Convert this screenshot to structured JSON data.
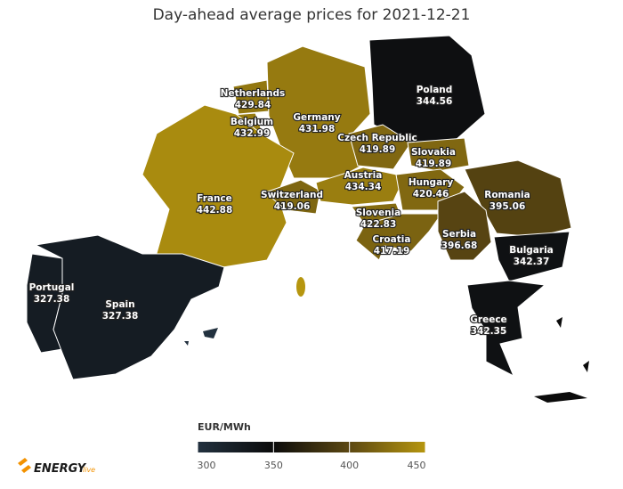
{
  "title": "Day-ahead average prices for 2021-12-21",
  "regions": [
    {
      "name": "Poland",
      "value": 344.56
    },
    {
      "name": "Netherlands",
      "value": 429.84
    },
    {
      "name": "Belgium",
      "value": 432.99
    },
    {
      "name": "Germany",
      "value": 431.98
    },
    {
      "name": "Czech Republic",
      "value": 419.89
    },
    {
      "name": "Slovakia",
      "value": 419.89
    },
    {
      "name": "France",
      "value": 442.88
    },
    {
      "name": "Switzerland",
      "value": 419.06
    },
    {
      "name": "Austria",
      "value": 434.34
    },
    {
      "name": "Hungary",
      "value": 420.46
    },
    {
      "name": "Romania",
      "value": 395.06
    },
    {
      "name": "Slovenia",
      "value": 422.83
    },
    {
      "name": "Croatia",
      "value": 417.19
    },
    {
      "name": "Serbia",
      "value": 396.68
    },
    {
      "name": "Bulgaria",
      "value": 342.37
    },
    {
      "name": "Portugal",
      "value": 327.38
    },
    {
      "name": "Spain",
      "value": 327.38
    },
    {
      "name": "Greece",
      "value": 342.35
    }
  ],
  "legend": {
    "title": "EUR/MWh",
    "range": [
      300,
      450
    ],
    "ticks": [
      300,
      350,
      400,
      450
    ],
    "colors": [
      "#22313f",
      "#0b0b0b",
      "#5c4812",
      "#b6960f"
    ]
  },
  "logo": {
    "text": "ENERGY",
    "suffix": "live"
  }
}
